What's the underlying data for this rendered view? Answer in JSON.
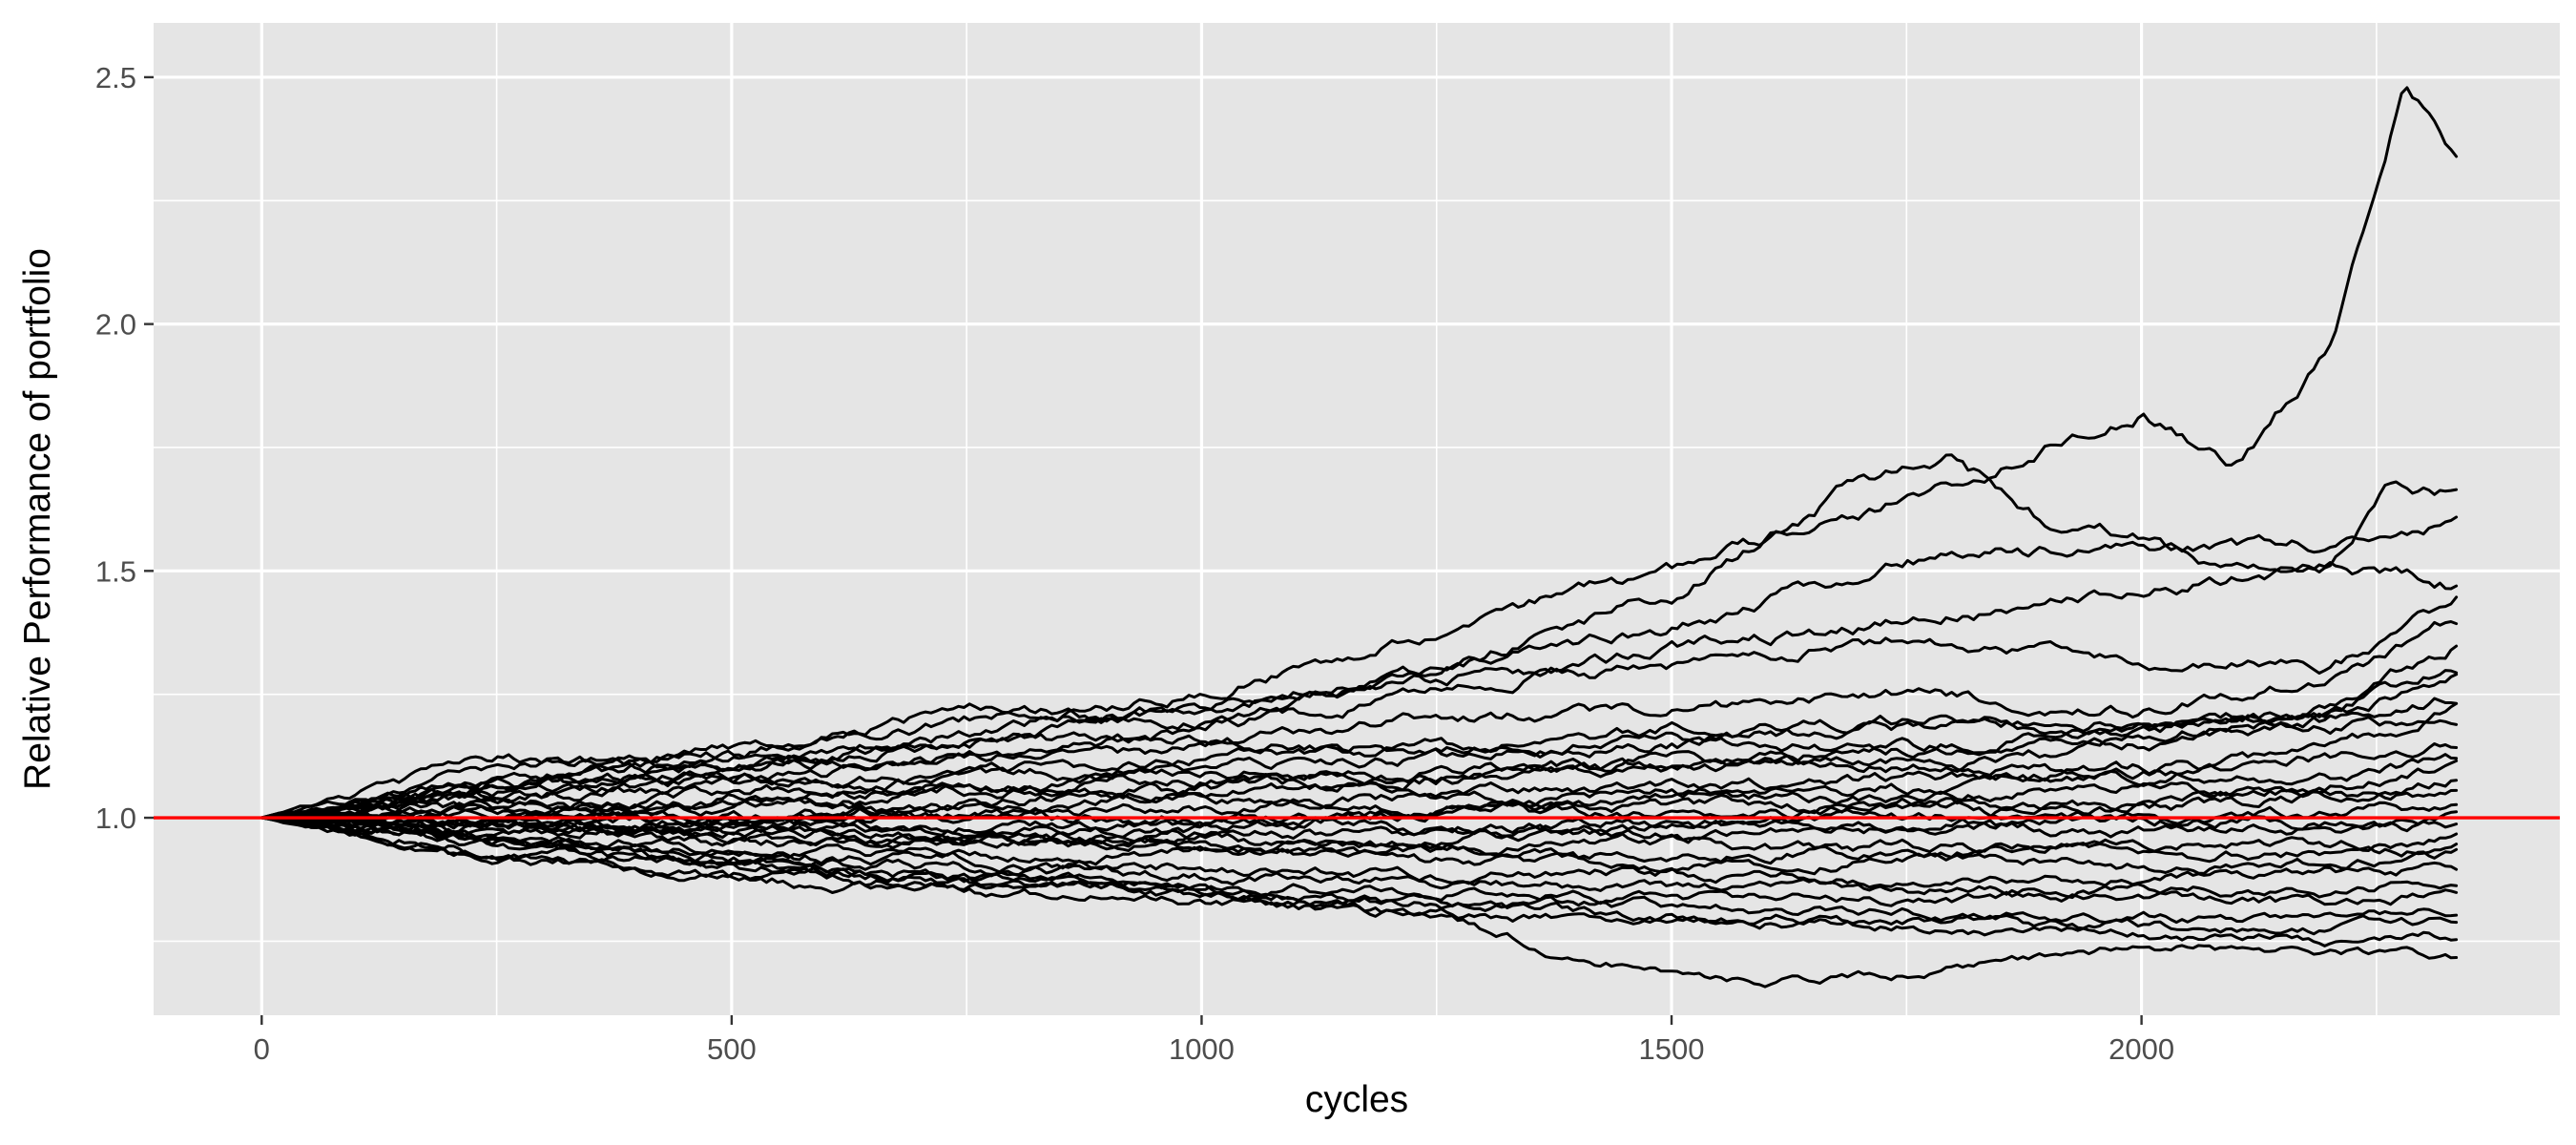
{
  "chart_data": {
    "type": "line",
    "title": "",
    "xlabel": "cycles",
    "ylabel": "Relative Performance of portfolio",
    "xlim": [
      -115,
      2445
    ],
    "ylim": [
      0.6,
      2.61
    ],
    "x_ticks": [
      0,
      500,
      1000,
      1500,
      2000
    ],
    "x_tick_labels": [
      "0",
      "500",
      "1000",
      "1500",
      "2000"
    ],
    "x_minor_ticks": [
      250,
      750,
      1250,
      1750,
      2250
    ],
    "y_ticks": [
      1.0,
      1.5,
      2.0,
      2.5
    ],
    "y_tick_labels": [
      "1.0",
      "1.5",
      "2.0",
      "2.5"
    ],
    "y_minor_ticks": [
      0.75,
      1.25,
      1.75,
      2.25
    ],
    "grid": true,
    "legend": "none",
    "n_cycles": 2335,
    "line_color": "#000000",
    "reference_line": {
      "y": 1.0,
      "color": "#ff0000"
    },
    "panel_background": "#e5e5e5",
    "series": [
      {
        "x": [
          0,
          250,
          500,
          750,
          1000,
          1250,
          1500,
          1750,
          2000,
          2100,
          2200,
          2280,
          2335
        ],
        "y": [
          1.0,
          1.06,
          1.1,
          1.17,
          1.25,
          1.38,
          1.5,
          1.65,
          1.82,
          1.72,
          1.95,
          2.48,
          2.33
        ]
      },
      {
        "x": [
          0,
          250,
          500,
          750,
          1000,
          1250,
          1500,
          1700,
          1800,
          1900,
          2000,
          2100,
          2200,
          2270,
          2335
        ],
        "y": [
          1.0,
          1.1,
          1.14,
          1.2,
          1.22,
          1.3,
          1.45,
          1.68,
          1.73,
          1.6,
          1.57,
          1.5,
          1.5,
          1.68,
          1.66
        ]
      },
      {
        "x": [
          0,
          250,
          500,
          750,
          1000,
          1250,
          1500,
          1750,
          2000,
          2200,
          2335
        ],
        "y": [
          1.0,
          1.06,
          1.12,
          1.15,
          1.22,
          1.3,
          1.38,
          1.52,
          1.55,
          1.55,
          1.6
        ]
      },
      {
        "x": [
          0,
          250,
          500,
          750,
          1000,
          1250,
          1500,
          1750,
          2000,
          2200,
          2335
        ],
        "y": [
          1.0,
          1.05,
          1.1,
          1.12,
          1.18,
          1.25,
          1.34,
          1.4,
          1.45,
          1.52,
          1.47
        ]
      },
      {
        "x": [
          0,
          250,
          500,
          750,
          1000,
          1250,
          1500,
          1750,
          2000,
          2200,
          2335
        ],
        "y": [
          1.0,
          1.08,
          1.13,
          1.22,
          1.2,
          1.28,
          1.3,
          1.36,
          1.32,
          1.3,
          1.44
        ]
      },
      {
        "x": [
          0,
          250,
          500,
          750,
          1000,
          1250,
          1500,
          1750,
          2000,
          2200,
          2335
        ],
        "y": [
          1.0,
          1.04,
          1.08,
          1.12,
          1.14,
          1.2,
          1.22,
          1.25,
          1.22,
          1.28,
          1.4
        ]
      },
      {
        "x": [
          0,
          250,
          500,
          750,
          1000,
          1250,
          1500,
          1750,
          2000,
          2200,
          2335
        ],
        "y": [
          1.0,
          1.12,
          1.1,
          1.15,
          1.16,
          1.14,
          1.18,
          1.2,
          1.18,
          1.22,
          1.3
        ]
      },
      {
        "x": [
          0,
          250,
          500,
          750,
          1000,
          1250,
          1500,
          1750,
          2000,
          2200,
          2335
        ],
        "y": [
          1.0,
          1.02,
          1.05,
          1.08,
          1.1,
          1.12,
          1.15,
          1.14,
          1.18,
          1.2,
          1.25
        ]
      },
      {
        "x": [
          0,
          250,
          500,
          750,
          1000,
          1250,
          1500,
          1750,
          2000,
          2200,
          2335
        ],
        "y": [
          1.0,
          1.06,
          1.08,
          1.06,
          1.1,
          1.08,
          1.12,
          1.1,
          1.15,
          1.18,
          1.2
        ]
      },
      {
        "x": [
          0,
          250,
          500,
          750,
          1000,
          1250,
          1500,
          1750,
          2000,
          2200,
          2335
        ],
        "y": [
          1.0,
          1.0,
          1.04,
          1.06,
          1.05,
          1.08,
          1.1,
          1.12,
          1.08,
          1.12,
          1.15
        ]
      },
      {
        "x": [
          0,
          250,
          500,
          750,
          1000,
          1250,
          1500,
          1750,
          2000,
          2200,
          2335
        ],
        "y": [
          1.0,
          1.03,
          1.02,
          1.05,
          1.08,
          1.05,
          1.06,
          1.08,
          1.1,
          1.08,
          1.12
        ]
      },
      {
        "x": [
          0,
          250,
          500,
          750,
          1000,
          1250,
          1500,
          1750,
          2000,
          2200,
          2335
        ],
        "y": [
          1.0,
          0.98,
          1.0,
          1.02,
          1.04,
          1.02,
          1.05,
          1.04,
          1.06,
          1.05,
          1.08
        ]
      },
      {
        "x": [
          0,
          250,
          500,
          750,
          1000,
          1250,
          1500,
          1750,
          2000,
          2200,
          2335
        ],
        "y": [
          1.0,
          1.02,
          1.03,
          1.0,
          1.02,
          1.04,
          1.02,
          1.03,
          1.02,
          1.04,
          1.05
        ]
      },
      {
        "x": [
          0,
          250,
          500,
          750,
          1000,
          1250,
          1500,
          1750,
          2000,
          2200,
          2335
        ],
        "y": [
          1.0,
          0.99,
          0.98,
          1.0,
          0.99,
          1.01,
          1.0,
          1.02,
          1.0,
          1.01,
          1.02
        ]
      },
      {
        "x": [
          0,
          250,
          500,
          750,
          1000,
          1250,
          1500,
          1750,
          2000,
          2200,
          2335
        ],
        "y": [
          1.0,
          1.01,
          1.0,
          0.98,
          1.0,
          0.98,
          0.99,
          0.98,
          1.0,
          0.99,
          1.0
        ]
      },
      {
        "x": [
          0,
          250,
          500,
          750,
          1000,
          1250,
          1500,
          1750,
          2000,
          2200,
          2335
        ],
        "y": [
          1.0,
          0.98,
          0.97,
          0.98,
          0.96,
          0.97,
          0.96,
          0.98,
          0.97,
          0.98,
          0.98
        ]
      },
      {
        "x": [
          0,
          250,
          500,
          750,
          1000,
          1250,
          1500,
          1750,
          2000,
          2200,
          2335
        ],
        "y": [
          1.0,
          0.97,
          0.96,
          0.95,
          0.96,
          0.94,
          0.95,
          0.93,
          0.95,
          0.94,
          0.96
        ]
      },
      {
        "x": [
          0,
          250,
          500,
          750,
          1000,
          1250,
          1500,
          1750,
          2000,
          2200,
          2335
        ],
        "y": [
          1.0,
          0.98,
          0.95,
          0.96,
          0.94,
          0.93,
          0.92,
          0.94,
          0.92,
          0.93,
          0.94
        ]
      },
      {
        "x": [
          0,
          250,
          500,
          750,
          1000,
          1250,
          1500,
          1750,
          2000,
          2200,
          2335
        ],
        "y": [
          1.0,
          0.96,
          0.94,
          0.92,
          0.93,
          0.91,
          0.9,
          0.92,
          0.9,
          0.91,
          0.92
        ]
      },
      {
        "x": [
          0,
          250,
          500,
          750,
          1000,
          1250,
          1500,
          1750,
          2000,
          2200,
          2335
        ],
        "y": [
          1.0,
          0.95,
          0.93,
          0.91,
          0.9,
          0.88,
          0.89,
          0.87,
          0.88,
          0.89,
          0.9
        ]
      },
      {
        "x": [
          0,
          250,
          500,
          750,
          1000,
          1250,
          1500,
          1750,
          2000,
          2200,
          2335
        ],
        "y": [
          1.0,
          0.96,
          0.92,
          0.9,
          0.88,
          0.87,
          0.86,
          0.85,
          0.86,
          0.85,
          0.88
        ]
      },
      {
        "x": [
          0,
          250,
          500,
          750,
          1000,
          1250,
          1500,
          1750,
          2000,
          2200,
          2335
        ],
        "y": [
          1.0,
          0.94,
          0.91,
          0.88,
          0.86,
          0.85,
          0.84,
          0.83,
          0.84,
          0.82,
          0.85
        ]
      },
      {
        "x": [
          0,
          250,
          500,
          750,
          1000,
          1250,
          1500,
          1750,
          2000,
          2200,
          2335
        ],
        "y": [
          1.0,
          0.93,
          0.9,
          0.87,
          0.85,
          0.83,
          0.82,
          0.81,
          0.8,
          0.8,
          0.82
        ]
      },
      {
        "x": [
          0,
          250,
          500,
          750,
          1000,
          1250,
          1500,
          1750,
          2000,
          2200,
          2335
        ],
        "y": [
          1.0,
          0.92,
          0.89,
          0.86,
          0.84,
          0.82,
          0.8,
          0.79,
          0.78,
          0.77,
          0.79
        ]
      },
      {
        "x": [
          0,
          250,
          500,
          750,
          1000,
          1250,
          1500,
          1750,
          2000,
          2200,
          2335
        ],
        "y": [
          1.0,
          0.91,
          0.88,
          0.85,
          0.83,
          0.8,
          0.79,
          0.78,
          0.76,
          0.75,
          0.76
        ]
      },
      {
        "x": [
          0,
          250,
          500,
          750,
          1000,
          1250,
          1400,
          1500,
          1600,
          1750,
          1900,
          2000,
          2200,
          2335
        ],
        "y": [
          1.0,
          0.95,
          0.9,
          0.88,
          0.85,
          0.8,
          0.72,
          0.69,
          0.67,
          0.68,
          0.72,
          0.74,
          0.73,
          0.72
        ]
      },
      {
        "x": [
          0,
          250,
          500,
          750,
          1000,
          1250,
          1500,
          1750,
          2000,
          2200,
          2335
        ],
        "y": [
          1.0,
          1.04,
          1.06,
          1.09,
          1.12,
          1.14,
          1.16,
          1.18,
          1.2,
          1.22,
          1.35
        ]
      },
      {
        "x": [
          0,
          250,
          500,
          750,
          1000,
          1250,
          1500,
          1750,
          2000,
          2200,
          2335
        ],
        "y": [
          1.0,
          0.97,
          0.99,
          1.03,
          1.06,
          1.09,
          1.11,
          1.14,
          1.17,
          1.2,
          1.28
        ]
      },
      {
        "x": [
          0,
          250,
          500,
          750,
          1000,
          1250,
          1500,
          1750,
          2000,
          2200,
          2335
        ],
        "y": [
          1.0,
          0.99,
          0.97,
          0.95,
          0.98,
          1.01,
          1.04,
          1.06,
          1.09,
          1.13,
          1.22
        ]
      },
      {
        "x": [
          0,
          250,
          500,
          750,
          1000,
          1250,
          1500,
          1750,
          2000,
          2200,
          2335
        ],
        "y": [
          1.0,
          1.02,
          0.99,
          0.96,
          0.94,
          0.96,
          0.98,
          1.0,
          1.03,
          1.06,
          1.1
        ]
      }
    ]
  }
}
